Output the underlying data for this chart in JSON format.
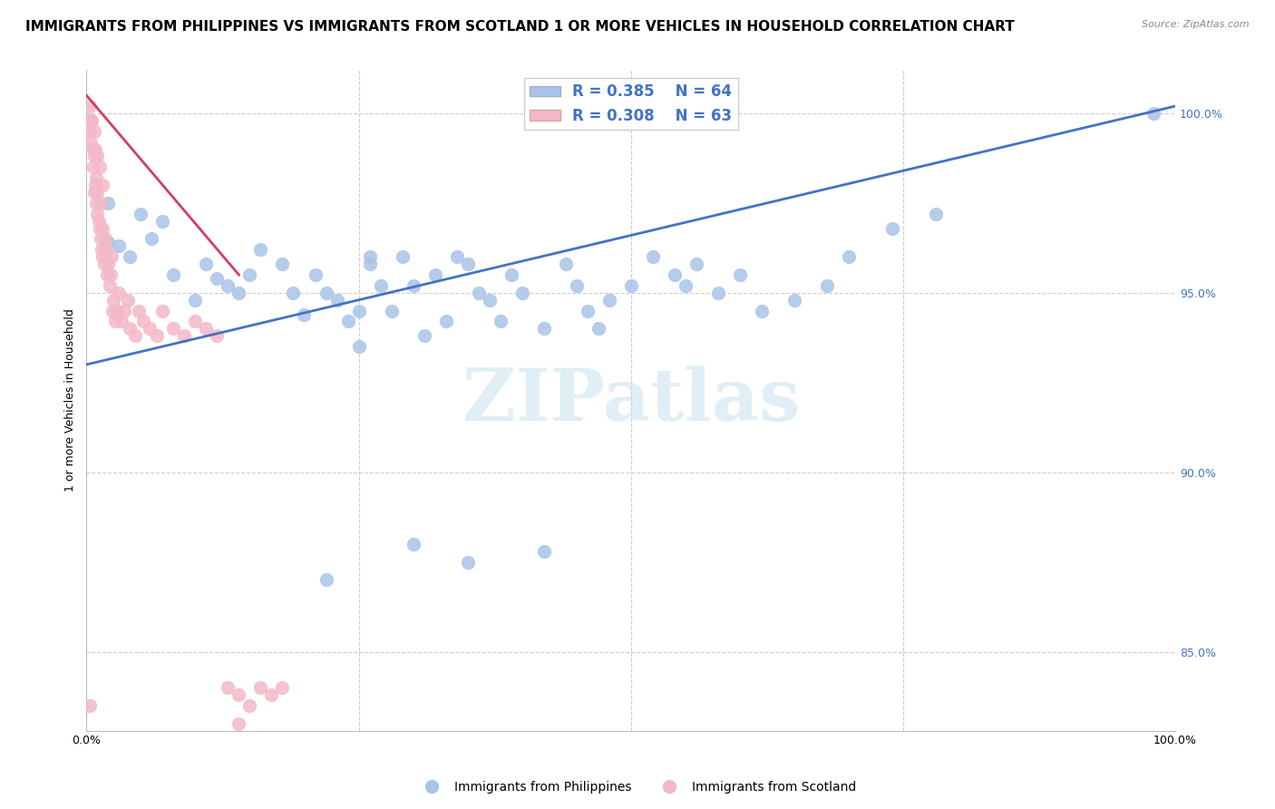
{
  "title": "IMMIGRANTS FROM PHILIPPINES VS IMMIGRANTS FROM SCOTLAND 1 OR MORE VEHICLES IN HOUSEHOLD CORRELATION CHART",
  "source": "Source: ZipAtlas.com",
  "ylabel": "1 or more Vehicles in Household",
  "xlim": [
    0.0,
    1.0
  ],
  "ylim": [
    0.828,
    1.012
  ],
  "ytick_positions": [
    0.85,
    0.9,
    0.95,
    1.0
  ],
  "ytick_labels": [
    "85.0%",
    "90.0%",
    "95.0%",
    "100.0%"
  ],
  "blue_R": 0.385,
  "blue_N": 64,
  "pink_R": 0.308,
  "pink_N": 63,
  "blue_color": "#a8c4e8",
  "pink_color": "#f4b8c8",
  "blue_line_color": "#4472c4",
  "pink_line_color": "#d04060",
  "legend_text_color": "#4472c4",
  "watermark_text": "ZIPatlas",
  "legend_label_blue": "Immigrants from Philippines",
  "legend_label_pink": "Immigrants from Scotland",
  "background_color": "#ffffff",
  "grid_color": "#cccccc",
  "title_fontsize": 11,
  "axis_label_fontsize": 9,
  "tick_fontsize": 9,
  "blue_line_x0": 0.0,
  "blue_line_x1": 1.0,
  "blue_line_y0": 0.93,
  "blue_line_y1": 1.002,
  "pink_line_x0": 0.0,
  "pink_line_x1": 0.14,
  "pink_line_y0": 1.005,
  "pink_line_y1": 0.955,
  "blue_scatter_x": [
    0.02,
    0.02,
    0.03,
    0.04,
    0.05,
    0.06,
    0.07,
    0.08,
    0.1,
    0.11,
    0.12,
    0.13,
    0.14,
    0.15,
    0.16,
    0.18,
    0.19,
    0.2,
    0.21,
    0.22,
    0.23,
    0.24,
    0.25,
    0.26,
    0.27,
    0.28,
    0.29,
    0.3,
    0.31,
    0.32,
    0.33,
    0.34,
    0.35,
    0.36,
    0.37,
    0.38,
    0.39,
    0.4,
    0.42,
    0.44,
    0.45,
    0.46,
    0.47,
    0.48,
    0.5,
    0.52,
    0.54,
    0.56,
    0.58,
    0.6,
    0.62,
    0.65,
    0.68,
    0.7,
    0.74,
    0.78,
    0.22,
    0.35,
    0.42,
    0.55,
    0.3,
    0.26,
    0.98,
    0.25
  ],
  "blue_scatter_y": [
    0.964,
    0.975,
    0.963,
    0.96,
    0.972,
    0.965,
    0.97,
    0.955,
    0.948,
    0.958,
    0.954,
    0.952,
    0.95,
    0.955,
    0.962,
    0.958,
    0.95,
    0.944,
    0.955,
    0.95,
    0.948,
    0.942,
    0.945,
    0.958,
    0.952,
    0.945,
    0.96,
    0.952,
    0.938,
    0.955,
    0.942,
    0.96,
    0.958,
    0.95,
    0.948,
    0.942,
    0.955,
    0.95,
    0.94,
    0.958,
    0.952,
    0.945,
    0.94,
    0.948,
    0.952,
    0.96,
    0.955,
    0.958,
    0.95,
    0.955,
    0.945,
    0.948,
    0.952,
    0.96,
    0.968,
    0.972,
    0.87,
    0.875,
    0.878,
    0.952,
    0.88,
    0.96,
    1.0,
    0.935
  ],
  "pink_scatter_x": [
    0.002,
    0.003,
    0.004,
    0.005,
    0.006,
    0.006,
    0.007,
    0.007,
    0.008,
    0.009,
    0.009,
    0.01,
    0.01,
    0.011,
    0.012,
    0.013,
    0.013,
    0.014,
    0.015,
    0.015,
    0.016,
    0.017,
    0.018,
    0.019,
    0.02,
    0.021,
    0.022,
    0.023,
    0.024,
    0.025,
    0.026,
    0.028,
    0.03,
    0.032,
    0.035,
    0.038,
    0.04,
    0.045,
    0.048,
    0.052,
    0.058,
    0.065,
    0.07,
    0.08,
    0.09,
    0.1,
    0.11,
    0.12,
    0.13,
    0.14,
    0.15,
    0.16,
    0.17,
    0.18,
    0.003,
    0.005,
    0.007,
    0.008,
    0.01,
    0.012,
    0.015,
    0.003,
    0.14
  ],
  "pink_scatter_y": [
    0.998,
    0.995,
    0.992,
    0.998,
    0.99,
    0.985,
    0.988,
    0.978,
    0.98,
    0.982,
    0.975,
    0.978,
    0.972,
    0.97,
    0.968,
    0.975,
    0.965,
    0.962,
    0.968,
    0.96,
    0.958,
    0.965,
    0.962,
    0.955,
    0.958,
    0.952,
    0.955,
    0.96,
    0.945,
    0.948,
    0.942,
    0.945,
    0.95,
    0.942,
    0.945,
    0.948,
    0.94,
    0.938,
    0.945,
    0.942,
    0.94,
    0.938,
    0.945,
    0.94,
    0.938,
    0.942,
    0.94,
    0.938,
    0.84,
    0.838,
    0.835,
    0.84,
    0.838,
    0.84,
    1.002,
    0.998,
    0.995,
    0.99,
    0.988,
    0.985,
    0.98,
    0.835,
    0.83
  ]
}
